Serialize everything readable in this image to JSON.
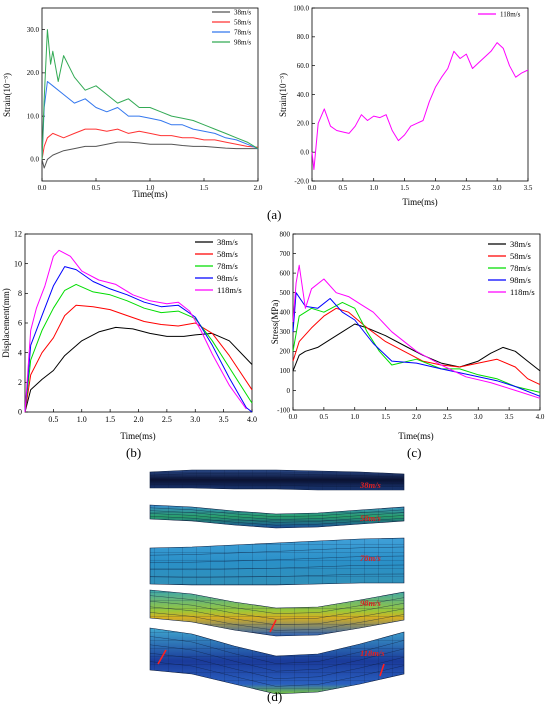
{
  "panel_labels": [
    "(a)",
    "(b)",
    "(c)",
    "(d)"
  ],
  "colors": {
    "38m/s": "#000000",
    "58m/s": "#ff0000",
    "78m/s": "#00dd00",
    "98m/s": "#0000ff",
    "118m/s": "#ff00ff",
    "a_38": "#555555",
    "a_58": "#ff3333",
    "a_78": "#3377ee",
    "a_98": "#33aa55"
  },
  "chart_data": [
    {
      "id": "a-left",
      "type": "line",
      "xlabel": "Time(ms)",
      "ylabel": "Strain(10⁻³)",
      "xlim": [
        0,
        2.0
      ],
      "ylim": [
        -5,
        35
      ],
      "xticks": [
        "0.0",
        "0.5",
        "1.0",
        "1.5",
        "2.0"
      ],
      "yticks": [
        "0.0",
        "10.0",
        "20.0",
        "30.0"
      ],
      "ytick_values": [
        0,
        10,
        20,
        30
      ],
      "xtick_values": [
        0,
        0.5,
        1.0,
        1.5,
        2.0
      ],
      "legend": "top-right",
      "series": [
        {
          "name": "38m/s",
          "color_key": "a_38",
          "x": [
            0,
            0.02,
            0.05,
            0.1,
            0.2,
            0.3,
            0.4,
            0.5,
            0.6,
            0.7,
            0.8,
            0.9,
            1.0,
            1.1,
            1.2,
            1.3,
            1.4,
            1.5,
            1.6,
            1.7,
            1.8,
            1.9,
            2.0
          ],
          "y": [
            0,
            -2,
            0,
            1,
            2,
            2.5,
            3,
            3,
            3.5,
            4,
            4,
            3.8,
            3.5,
            3.5,
            3.5,
            3.2,
            3,
            3,
            2.8,
            2.6,
            2.5,
            2.5,
            2.5
          ]
        },
        {
          "name": "58m/s",
          "color_key": "a_58",
          "x": [
            0,
            0.02,
            0.05,
            0.1,
            0.2,
            0.3,
            0.4,
            0.5,
            0.6,
            0.7,
            0.8,
            0.9,
            1.0,
            1.1,
            1.2,
            1.3,
            1.4,
            1.5,
            1.6,
            1.7,
            1.8,
            1.9,
            2.0
          ],
          "y": [
            0,
            3,
            5,
            6,
            5,
            6,
            7,
            7,
            6.5,
            7,
            6,
            6.5,
            6,
            5.5,
            5.5,
            5,
            5,
            4.5,
            4.5,
            4,
            3.5,
            3,
            2.8
          ]
        },
        {
          "name": "78m/s",
          "color_key": "a_78",
          "x": [
            0,
            0.02,
            0.05,
            0.1,
            0.2,
            0.3,
            0.4,
            0.5,
            0.6,
            0.7,
            0.8,
            0.9,
            1.0,
            1.1,
            1.2,
            1.3,
            1.4,
            1.5,
            1.6,
            1.7,
            1.8,
            1.9,
            2.0
          ],
          "y": [
            0,
            12,
            18,
            17,
            15,
            13,
            14,
            12,
            11,
            12,
            10,
            10,
            9.5,
            9,
            8,
            8,
            7,
            6.5,
            6,
            5,
            4.5,
            3.5,
            2.5
          ]
        },
        {
          "name": "98m/s",
          "color_key": "a_98",
          "x": [
            0,
            0.02,
            0.05,
            0.08,
            0.1,
            0.15,
            0.2,
            0.3,
            0.4,
            0.5,
            0.6,
            0.7,
            0.8,
            0.9,
            1.0,
            1.1,
            1.2,
            1.3,
            1.4,
            1.5,
            1.6,
            1.7,
            1.8,
            1.9,
            2.0
          ],
          "y": [
            0,
            14,
            30,
            22,
            25,
            18,
            24,
            19,
            16,
            17,
            15,
            13,
            14,
            12,
            12,
            11,
            10,
            9.5,
            9,
            8,
            7,
            6,
            5,
            4,
            2.5
          ]
        }
      ]
    },
    {
      "id": "a-right",
      "type": "line",
      "xlabel": "Time(ms)",
      "ylabel": "Strain(10⁻³)",
      "xlim": [
        0,
        3.5
      ],
      "ylim": [
        -20,
        100
      ],
      "xticks": [
        "0.0",
        "0.5",
        "1.0",
        "1.5",
        "2.0",
        "2.5",
        "3.0",
        "3.5"
      ],
      "xtick_values": [
        0,
        0.5,
        1.0,
        1.5,
        2.0,
        2.5,
        3.0,
        3.5
      ],
      "yticks": [
        "-20.0",
        "0.0",
        "20.0",
        "40.0",
        "60.0",
        "80.0",
        "100.0"
      ],
      "ytick_values": [
        -20,
        0,
        20,
        40,
        60,
        80,
        100
      ],
      "legend": "top-right",
      "series": [
        {
          "name": "118m/s",
          "color_key": "118m/s",
          "x": [
            0,
            0.03,
            0.1,
            0.2,
            0.3,
            0.4,
            0.5,
            0.6,
            0.7,
            0.8,
            0.9,
            1.0,
            1.1,
            1.2,
            1.3,
            1.4,
            1.5,
            1.6,
            1.7,
            1.8,
            1.9,
            2.0,
            2.1,
            2.2,
            2.3,
            2.4,
            2.5,
            2.6,
            2.7,
            2.8,
            2.9,
            3.0,
            3.1,
            3.2,
            3.3,
            3.4,
            3.5
          ],
          "y": [
            0,
            -12,
            20,
            30,
            18,
            15,
            14,
            13,
            18,
            26,
            22,
            25,
            24,
            26,
            15,
            8,
            12,
            18,
            20,
            22,
            35,
            45,
            52,
            58,
            70,
            65,
            68,
            58,
            62,
            66,
            70,
            76,
            72,
            60,
            52,
            55,
            57
          ]
        }
      ]
    },
    {
      "id": "b",
      "type": "line",
      "xlabel": "Time(ms)",
      "ylabel": "Displacement(mm)",
      "xlim": [
        0,
        4.0
      ],
      "ylim": [
        0,
        12
      ],
      "xticks": [
        "0.5",
        "1.0",
        "1.5",
        "2.0",
        "2.5",
        "3.0",
        "3.5",
        "4.0"
      ],
      "xtick_values": [
        0.5,
        1.0,
        1.5,
        2.0,
        2.5,
        3.0,
        3.5,
        4.0
      ],
      "yticks": [
        "0",
        "2",
        "4",
        "6",
        "8",
        "10",
        "12"
      ],
      "ytick_values": [
        0,
        2,
        4,
        6,
        8,
        10,
        12
      ],
      "legend": "top-right",
      "series": [
        {
          "name": "38m/s",
          "color_key": "38m/s",
          "x": [
            0,
            0.1,
            0.3,
            0.5,
            0.7,
            1.0,
            1.3,
            1.6,
            1.9,
            2.2,
            2.5,
            2.8,
            3.0,
            3.3,
            3.6,
            4.0
          ],
          "y": [
            0,
            1.5,
            2.2,
            2.8,
            3.8,
            4.8,
            5.4,
            5.7,
            5.6,
            5.3,
            5.1,
            5.1,
            5.2,
            5.3,
            4.8,
            3.2
          ]
        },
        {
          "name": "58m/s",
          "color_key": "58m/s",
          "x": [
            0,
            0.1,
            0.3,
            0.5,
            0.7,
            0.9,
            1.2,
            1.5,
            1.8,
            2.1,
            2.4,
            2.7,
            3.0,
            3.3,
            3.6,
            4.0
          ],
          "y": [
            0,
            2.5,
            4,
            5,
            6.5,
            7.2,
            7.1,
            6.9,
            6.5,
            6.1,
            5.9,
            5.8,
            6,
            5.3,
            3.8,
            1.5
          ]
        },
        {
          "name": "78m/s",
          "color_key": "78m/s",
          "x": [
            0,
            0.1,
            0.3,
            0.5,
            0.7,
            0.9,
            1.2,
            1.5,
            1.8,
            2.1,
            2.4,
            2.7,
            3.0,
            3.3,
            3.6,
            4.0
          ],
          "y": [
            0,
            3.5,
            5.5,
            7,
            8.2,
            8.6,
            8.1,
            7.9,
            7.5,
            7,
            6.7,
            6.8,
            6.3,
            4.8,
            3,
            0.6
          ]
        },
        {
          "name": "98m/s",
          "color_key": "98m/s",
          "x": [
            0,
            0.1,
            0.3,
            0.5,
            0.7,
            0.9,
            1.2,
            1.5,
            1.8,
            2.1,
            2.4,
            2.7,
            3.0,
            3.3,
            3.6,
            3.9,
            4.0
          ],
          "y": [
            0,
            4.5,
            6.5,
            8.5,
            9.8,
            9.6,
            8.8,
            8.3,
            7.9,
            7.4,
            7.1,
            7.2,
            6.4,
            4.5,
            2.3,
            0.3,
            0
          ]
        },
        {
          "name": "118m/s",
          "color_key": "118m/s",
          "x": [
            0,
            0.1,
            0.2,
            0.35,
            0.5,
            0.6,
            0.8,
            1.0,
            1.3,
            1.6,
            1.9,
            2.2,
            2.5,
            2.7,
            2.9,
            3.1,
            3.3,
            3.6,
            3.9
          ],
          "y": [
            0,
            5.5,
            7,
            8.5,
            10.5,
            10.9,
            10.5,
            9.5,
            8.9,
            8.6,
            7.9,
            7.5,
            7.3,
            7.4,
            6.8,
            5.5,
            3.9,
            1.8,
            0.2
          ]
        }
      ]
    },
    {
      "id": "c",
      "type": "line",
      "xlabel": "Time(ms)",
      "ylabel": "Stress(MPa)",
      "xlim": [
        0,
        4.0
      ],
      "ylim": [
        -100,
        800
      ],
      "xticks": [
        "0.0",
        "0.5",
        "1.0",
        "1.5",
        "2.0",
        "2.5",
        "3.0",
        "3.5",
        "4.0"
      ],
      "xtick_values": [
        0,
        0.5,
        1.0,
        1.5,
        2.0,
        2.5,
        3.0,
        3.5,
        4.0
      ],
      "yticks": [
        "-100",
        "0",
        "100",
        "200",
        "300",
        "400",
        "500",
        "600",
        "700",
        "800"
      ],
      "ytick_values": [
        -100,
        0,
        100,
        200,
        300,
        400,
        500,
        600,
        700,
        800
      ],
      "legend": "top-right",
      "series": [
        {
          "name": "38m/s",
          "color_key": "38m/s",
          "x": [
            0,
            0.1,
            0.2,
            0.4,
            0.6,
            0.8,
            1.0,
            1.2,
            1.5,
            1.8,
            2.1,
            2.4,
            2.7,
            3.0,
            3.2,
            3.4,
            3.6,
            3.8,
            4.0
          ],
          "y": [
            100,
            180,
            200,
            220,
            260,
            300,
            340,
            320,
            280,
            230,
            180,
            140,
            120,
            150,
            190,
            220,
            200,
            150,
            100
          ]
        },
        {
          "name": "58m/s",
          "color_key": "58m/s",
          "x": [
            0,
            0.1,
            0.3,
            0.5,
            0.7,
            0.9,
            1.2,
            1.5,
            1.8,
            2.1,
            2.4,
            2.7,
            3.0,
            3.3,
            3.6,
            3.8,
            4.0
          ],
          "y": [
            150,
            250,
            320,
            380,
            420,
            400,
            320,
            250,
            200,
            150,
            130,
            120,
            140,
            160,
            120,
            60,
            30
          ]
        },
        {
          "name": "78m/s",
          "color_key": "78m/s",
          "x": [
            0,
            0.1,
            0.3,
            0.5,
            0.8,
            1.0,
            1.2,
            1.4,
            1.6,
            2.0,
            2.4,
            2.7,
            3.0,
            3.3,
            3.6,
            4.0
          ],
          "y": [
            200,
            380,
            420,
            400,
            450,
            420,
            300,
            200,
            130,
            160,
            110,
            110,
            80,
            60,
            20,
            -10
          ]
        },
        {
          "name": "98m/s",
          "color_key": "98m/s",
          "x": [
            0,
            0.05,
            0.2,
            0.4,
            0.6,
            0.8,
            1.0,
            1.3,
            1.6,
            2.0,
            2.4,
            2.7,
            3.0,
            3.3,
            3.6,
            4.0
          ],
          "y": [
            300,
            500,
            430,
            420,
            470,
            400,
            360,
            240,
            150,
            140,
            110,
            90,
            70,
            50,
            20,
            -30
          ]
        },
        {
          "name": "118m/s",
          "color_key": "118m/s",
          "x": [
            0,
            0.05,
            0.1,
            0.2,
            0.3,
            0.5,
            0.7,
            0.9,
            1.1,
            1.3,
            1.6,
            2.0,
            2.4,
            2.8,
            3.2,
            3.6,
            4.0
          ],
          "y": [
            350,
            550,
            640,
            420,
            520,
            570,
            500,
            480,
            440,
            400,
            300,
            200,
            130,
            70,
            40,
            0,
            -40
          ]
        }
      ]
    },
    {
      "id": "d",
      "type": "other",
      "labels": [
        "38m/s",
        "58m/s",
        "78m/s",
        "98m/s",
        "118m/s"
      ]
    }
  ]
}
